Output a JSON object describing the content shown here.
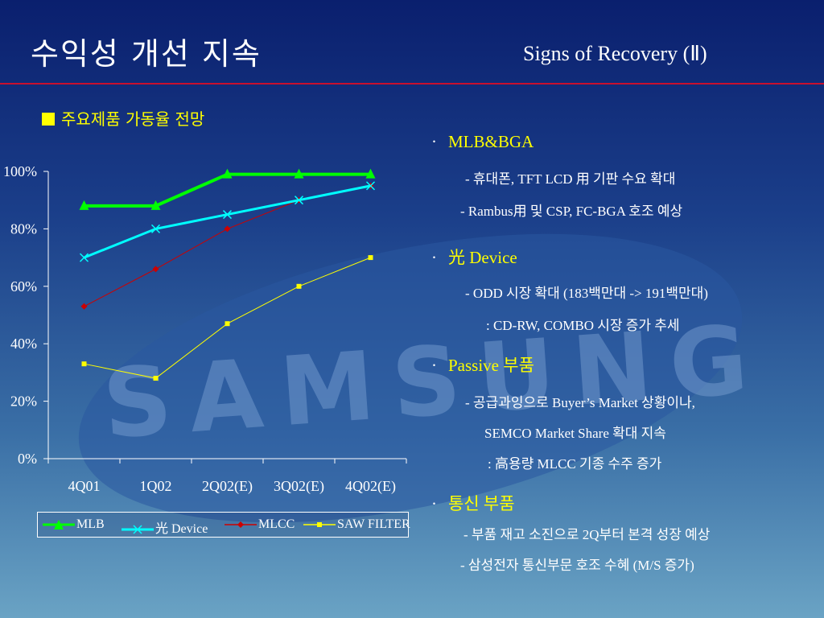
{
  "header": {
    "title": "수익성 개선 지속",
    "subtitle": "Signs of Recovery (Ⅱ)"
  },
  "watermark": {
    "text": "SAMSUNG"
  },
  "chart_heading": "주요제품 가동율 전망",
  "chart_data": {
    "type": "line",
    "categories": [
      "4Q01",
      "1Q02",
      "2Q02(E)",
      "3Q02(E)",
      "4Q02(E)"
    ],
    "ylim": [
      0,
      100
    ],
    "yticks": [
      "0%",
      "20%",
      "40%",
      "60%",
      "80%",
      "100%"
    ],
    "grid": false,
    "legend_position": "bottom",
    "series": [
      {
        "name": "MLB",
        "values": [
          88,
          88,
          99,
          99,
          99
        ],
        "color": "#00ff00",
        "marker": "triangle"
      },
      {
        "name": "光 Device",
        "values": [
          70,
          80,
          85,
          90,
          95
        ],
        "color": "#00ffff",
        "marker": "x"
      },
      {
        "name": "MLCC",
        "values": [
          53,
          66,
          80,
          90,
          95
        ],
        "color": "#cc0000",
        "marker": "diamond"
      },
      {
        "name": "SAW FILTER",
        "values": [
          33,
          28,
          47,
          60,
          70
        ],
        "color": "#ffff00",
        "marker": "square"
      }
    ]
  },
  "bullets": [
    {
      "head": "MLB&BGA",
      "lines": [
        "- 휴대폰, TFT LCD 用 기판 수요 확대",
        "-  Rambus用 및 CSP, FC-BGA 호조 예상"
      ]
    },
    {
      "head": "光 Device",
      "lines": [
        "- ODD 시장 확대  (183백만대 -> 191백만대)",
        ": CD-RW, COMBO 시장 증가 추세"
      ]
    },
    {
      "head": "Passive 부품",
      "lines": [
        "- 공급과잉으로 Buyer’s Market 상황이나,",
        "SEMCO Market Share 확대 지속",
        ": 高용량 MLCC 기종 수주 증가"
      ]
    },
    {
      "head": "통신 부품",
      "lines": [
        "- 부품 재고 소진으로 2Q부터 본격 성장 예상",
        "- 삼성전자 통신부문 호조 수혜 (M/S 증가)"
      ]
    }
  ],
  "bullet_marker": "·"
}
